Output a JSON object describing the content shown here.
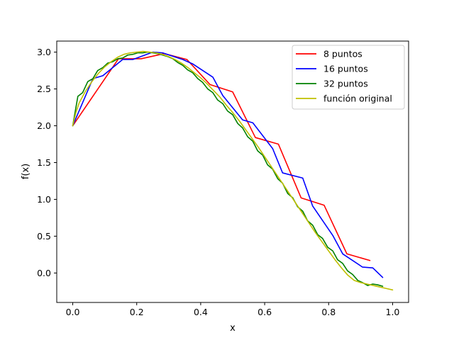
{
  "chart_data": {
    "type": "line",
    "title": "",
    "xlabel": "x",
    "ylabel": "f(x)",
    "xlim": [
      -0.05,
      1.05
    ],
    "ylim": [
      -0.4,
      3.15
    ],
    "xticks": [
      0.0,
      0.2,
      0.4,
      0.6,
      0.8,
      1.0
    ],
    "xtick_labels": [
      "0.0",
      "0.2",
      "0.4",
      "0.6",
      "0.8",
      "1.0"
    ],
    "yticks": [
      0.0,
      0.5,
      1.0,
      1.5,
      2.0,
      2.5,
      3.0
    ],
    "ytick_labels": [
      "0.0",
      "0.5",
      "1.0",
      "1.5",
      "2.0",
      "2.5",
      "3.0"
    ],
    "grid": false,
    "legend_position": "top-right",
    "series": [
      {
        "name": "8 puntos",
        "color": "#ff0000",
        "style": "step-linear",
        "x": [
          0.0,
          0.143,
          0.214,
          0.286,
          0.357,
          0.429,
          0.5,
          0.571,
          0.643,
          0.714,
          0.786,
          0.857,
          0.929
        ],
        "y": [
          2.0,
          2.91,
          2.91,
          2.98,
          2.9,
          2.56,
          2.46,
          1.84,
          1.75,
          1.02,
          0.92,
          0.26,
          0.17
        ]
      },
      {
        "name": "16 puntos",
        "color": "#0000ff",
        "style": "step-linear",
        "x": [
          0.0,
          0.063,
          0.094,
          0.156,
          0.188,
          0.25,
          0.281,
          0.344,
          0.375,
          0.438,
          0.469,
          0.531,
          0.563,
          0.625,
          0.656,
          0.719,
          0.75,
          0.813,
          0.844,
          0.906,
          0.938,
          0.969
        ],
        "y": [
          2.0,
          2.64,
          2.68,
          2.9,
          2.9,
          3.0,
          2.99,
          2.9,
          2.84,
          2.66,
          2.41,
          2.08,
          2.04,
          1.69,
          1.36,
          1.29,
          0.91,
          0.51,
          0.26,
          0.08,
          0.07,
          -0.06
        ]
      },
      {
        "name": "32 puntos",
        "color": "#008000",
        "style": "step-linear",
        "x": [
          0.0,
          0.016,
          0.031,
          0.047,
          0.063,
          0.078,
          0.094,
          0.109,
          0.125,
          0.141,
          0.156,
          0.172,
          0.188,
          0.203,
          0.219,
          0.234,
          0.25,
          0.266,
          0.281,
          0.297,
          0.313,
          0.328,
          0.344,
          0.359,
          0.375,
          0.391,
          0.406,
          0.422,
          0.438,
          0.453,
          0.469,
          0.484,
          0.5,
          0.516,
          0.531,
          0.547,
          0.563,
          0.578,
          0.594,
          0.609,
          0.625,
          0.641,
          0.656,
          0.672,
          0.688,
          0.703,
          0.719,
          0.734,
          0.75,
          0.766,
          0.781,
          0.797,
          0.813,
          0.828,
          0.844,
          0.859,
          0.875,
          0.891,
          0.906,
          0.922,
          0.938,
          0.953,
          0.969
        ],
        "y": [
          2.0,
          2.4,
          2.45,
          2.6,
          2.64,
          2.75,
          2.79,
          2.85,
          2.87,
          2.91,
          2.92,
          2.96,
          2.97,
          2.99,
          2.99,
          3.0,
          2.99,
          2.98,
          2.96,
          2.94,
          2.91,
          2.86,
          2.82,
          2.76,
          2.72,
          2.64,
          2.59,
          2.5,
          2.45,
          2.35,
          2.3,
          2.2,
          2.15,
          2.03,
          1.97,
          1.85,
          1.79,
          1.66,
          1.6,
          1.47,
          1.41,
          1.28,
          1.22,
          1.08,
          1.02,
          0.9,
          0.84,
          0.71,
          0.65,
          0.52,
          0.47,
          0.35,
          0.3,
          0.18,
          0.13,
          0.03,
          -0.02,
          -0.1,
          -0.13,
          -0.17,
          -0.15,
          -0.16,
          -0.18
        ]
      },
      {
        "name": "función original",
        "color": "#bfbf00",
        "style": "curve",
        "x": [
          0.0,
          0.01,
          0.02,
          0.04,
          0.06,
          0.08,
          0.1,
          0.12,
          0.14,
          0.16,
          0.18,
          0.2,
          0.22,
          0.24,
          0.26,
          0.28,
          0.3,
          0.32,
          0.34,
          0.36,
          0.38,
          0.4,
          0.42,
          0.44,
          0.46,
          0.48,
          0.5,
          0.52,
          0.54,
          0.56,
          0.58,
          0.6,
          0.62,
          0.64,
          0.66,
          0.68,
          0.7,
          0.72,
          0.74,
          0.76,
          0.78,
          0.8,
          0.82,
          0.84,
          0.86,
          0.88,
          0.9,
          0.92,
          0.94,
          0.96,
          0.98,
          1.0
        ],
        "y": [
          2.0,
          2.18,
          2.31,
          2.47,
          2.6,
          2.71,
          2.8,
          2.87,
          2.93,
          2.97,
          2.99,
          3.0,
          3.01,
          3.0,
          2.99,
          2.97,
          2.94,
          2.9,
          2.85,
          2.79,
          2.72,
          2.65,
          2.57,
          2.48,
          2.39,
          2.28,
          2.18,
          2.07,
          1.95,
          1.83,
          1.71,
          1.58,
          1.45,
          1.32,
          1.19,
          1.06,
          0.93,
          0.8,
          0.67,
          0.54,
          0.42,
          0.3,
          0.18,
          0.07,
          -0.03,
          -0.1,
          -0.13,
          -0.15,
          -0.17,
          -0.19,
          -0.21,
          -0.23
        ]
      }
    ]
  }
}
